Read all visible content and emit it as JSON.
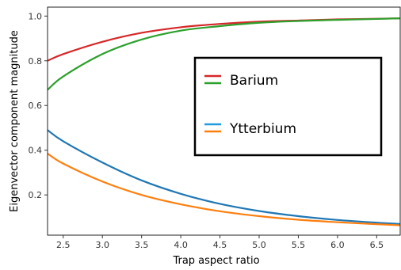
{
  "chart_data": {
    "type": "line",
    "xlabel": "Trap aspect ratio",
    "ylabel": "Eigenvector component magnitude",
    "xlim": [
      2.3,
      6.8
    ],
    "ylim": [
      0.02,
      1.04
    ],
    "xticks": [
      "2.5",
      "3.0",
      "3.5",
      "4.0",
      "4.5",
      "5.0",
      "5.5",
      "6.0",
      "6.5"
    ],
    "yticks": [
      "0.2",
      "0.4",
      "0.6",
      "0.8",
      "1.0"
    ],
    "grid": false,
    "legend": {
      "placement": "center-right",
      "entries": [
        {
          "label": "Barium",
          "colors": [
            "#d62728",
            "#2ca02c"
          ]
        },
        {
          "label": "Ytterbium",
          "colors": [
            "#1f9bde",
            "#ff7f0e"
          ]
        }
      ]
    },
    "x": [
      2.3,
      2.5,
      3.0,
      3.5,
      4.0,
      4.5,
      5.0,
      5.5,
      6.0,
      6.5,
      6.8
    ],
    "series": [
      {
        "color": "#d62728",
        "values": [
          0.8,
          0.83,
          0.885,
          0.925,
          0.95,
          0.965,
          0.975,
          0.98,
          0.985,
          0.988,
          0.99
        ]
      },
      {
        "color": "#2ca02c",
        "values": [
          0.67,
          0.73,
          0.83,
          0.895,
          0.935,
          0.955,
          0.97,
          0.978,
          0.983,
          0.987,
          0.99
        ]
      },
      {
        "color": "#1f77b4",
        "values": [
          0.49,
          0.44,
          0.345,
          0.265,
          0.205,
          0.16,
          0.128,
          0.105,
          0.088,
          0.076,
          0.07
        ]
      },
      {
        "color": "#ff7f0e",
        "values": [
          0.385,
          0.34,
          0.26,
          0.2,
          0.158,
          0.127,
          0.105,
          0.089,
          0.078,
          0.069,
          0.064
        ]
      }
    ]
  }
}
